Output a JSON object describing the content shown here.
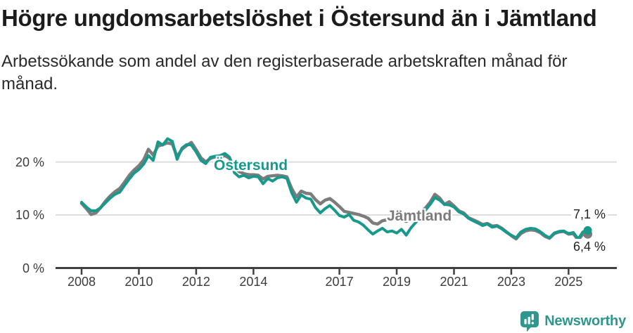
{
  "header": {
    "title": "Högre ungdomsarbetslöshet i Östersund än i Jämtland",
    "subtitle": "Arbetssökande som andel av den registerbaserade arbetskraften månad för månad."
  },
  "colors": {
    "ostersund": "#17998c",
    "jamtland": "#7c7c7c",
    "brand_teal": "#2f968d",
    "grid": "#dddddd",
    "axis": "#404040",
    "tick_text": "#3c3c3c"
  },
  "chart_data": {
    "type": "line",
    "unit": "%",
    "x_start": 2008.0,
    "x_step_years": 0.16667,
    "xlim": [
      2008,
      2025.9
    ],
    "ylim": [
      0,
      26
    ],
    "grid": "horizontal",
    "legend_position": "inline-labels",
    "yticks": [
      {
        "value": 0,
        "label": "0 %"
      },
      {
        "value": 10,
        "label": "10 %"
      },
      {
        "value": 20,
        "label": "20 %"
      }
    ],
    "xticks": [
      {
        "value": 2008,
        "label": "2008"
      },
      {
        "value": 2010,
        "label": "2010"
      },
      {
        "value": 2012,
        "label": "2012"
      },
      {
        "value": 2014,
        "label": "2014"
      },
      {
        "value": 2017,
        "label": "2017"
      },
      {
        "value": 2019,
        "label": "2019"
      },
      {
        "value": 2021,
        "label": "2021"
      },
      {
        "value": 2023,
        "label": "2023"
      },
      {
        "value": 2025,
        "label": "2025"
      }
    ],
    "series": [
      {
        "name": "Östersund",
        "color": "#17998c",
        "end_label": "7,1 %",
        "end_value": 7.1,
        "values": [
          12.4,
          11.5,
          10.8,
          10.8,
          11.4,
          12.3,
          13.2,
          13.9,
          14.3,
          15.6,
          16.8,
          17.9,
          18.6,
          19.6,
          21.2,
          20.3,
          23.8,
          23.2,
          24.4,
          23.9,
          20.5,
          22.6,
          23.3,
          23.2,
          21.9,
          20.3,
          19.7,
          20.9,
          21.1,
          21.2,
          21.6,
          20.9,
          18.0,
          17.2,
          17.5,
          17.0,
          17.3,
          17.2,
          15.9,
          16.9,
          16.4,
          17.0,
          17.2,
          16.9,
          14.2,
          12.4,
          13.8,
          13.2,
          13.0,
          11.4,
          10.4,
          11.2,
          11.8,
          10.9,
          9.9,
          9.6,
          10.1,
          9.0,
          8.7,
          8.1,
          7.2,
          6.4,
          7.0,
          7.5,
          6.8,
          7.0,
          6.6,
          7.3,
          6.2,
          7.6,
          8.6,
          9.8,
          10.9,
          12.0,
          13.3,
          12.8,
          12.0,
          11.9,
          11.5,
          10.6,
          10.2,
          9.4,
          8.9,
          8.5,
          8.0,
          8.3,
          7.7,
          7.9,
          7.4,
          6.7,
          6.2,
          5.7,
          6.8,
          7.3,
          7.5,
          7.4,
          6.9,
          6.2,
          5.7,
          6.6,
          6.9,
          7.0,
          6.5,
          6.7,
          5.5,
          6.8,
          7.1
        ]
      },
      {
        "name": "Jämtland",
        "color": "#7c7c7c",
        "end_label": "6,4 %",
        "end_value": 6.4,
        "values": [
          12.2,
          11.2,
          10.1,
          10.4,
          11.4,
          12.6,
          13.6,
          14.4,
          15.0,
          16.2,
          17.5,
          18.5,
          19.3,
          20.4,
          22.4,
          21.3,
          23.0,
          23.3,
          23.6,
          23.4,
          21.0,
          22.4,
          23.1,
          23.7,
          22.3,
          20.8,
          20.0,
          20.7,
          21.0,
          20.9,
          21.2,
          20.7,
          19.0,
          18.2,
          17.8,
          17.6,
          17.6,
          17.5,
          16.8,
          17.3,
          17.4,
          17.5,
          17.4,
          17.2,
          15.0,
          13.4,
          14.5,
          14.1,
          14.0,
          12.9,
          12.1,
          12.8,
          13.1,
          12.4,
          11.6,
          10.7,
          10.5,
          10.3,
          10.1,
          9.8,
          9.4,
          8.5,
          8.3,
          8.9,
          9.1,
          9.2,
          9.1,
          9.2,
          8.8,
          9.3,
          9.9,
          10.6,
          11.3,
          12.4,
          13.9,
          13.2,
          12.0,
          12.5,
          11.7,
          10.8,
          10.4,
          9.5,
          9.1,
          8.7,
          8.2,
          8.4,
          7.9,
          8.0,
          7.5,
          6.8,
          6.1,
          5.5,
          6.5,
          7.0,
          7.2,
          7.1,
          6.7,
          6.0,
          5.6,
          6.5,
          6.8,
          6.9,
          6.4,
          6.5,
          5.3,
          6.4,
          6.4
        ]
      }
    ]
  },
  "footer": {
    "brand": "Newsworthy",
    "brand_icon": "newsworthy-pin-barchart-icon"
  }
}
